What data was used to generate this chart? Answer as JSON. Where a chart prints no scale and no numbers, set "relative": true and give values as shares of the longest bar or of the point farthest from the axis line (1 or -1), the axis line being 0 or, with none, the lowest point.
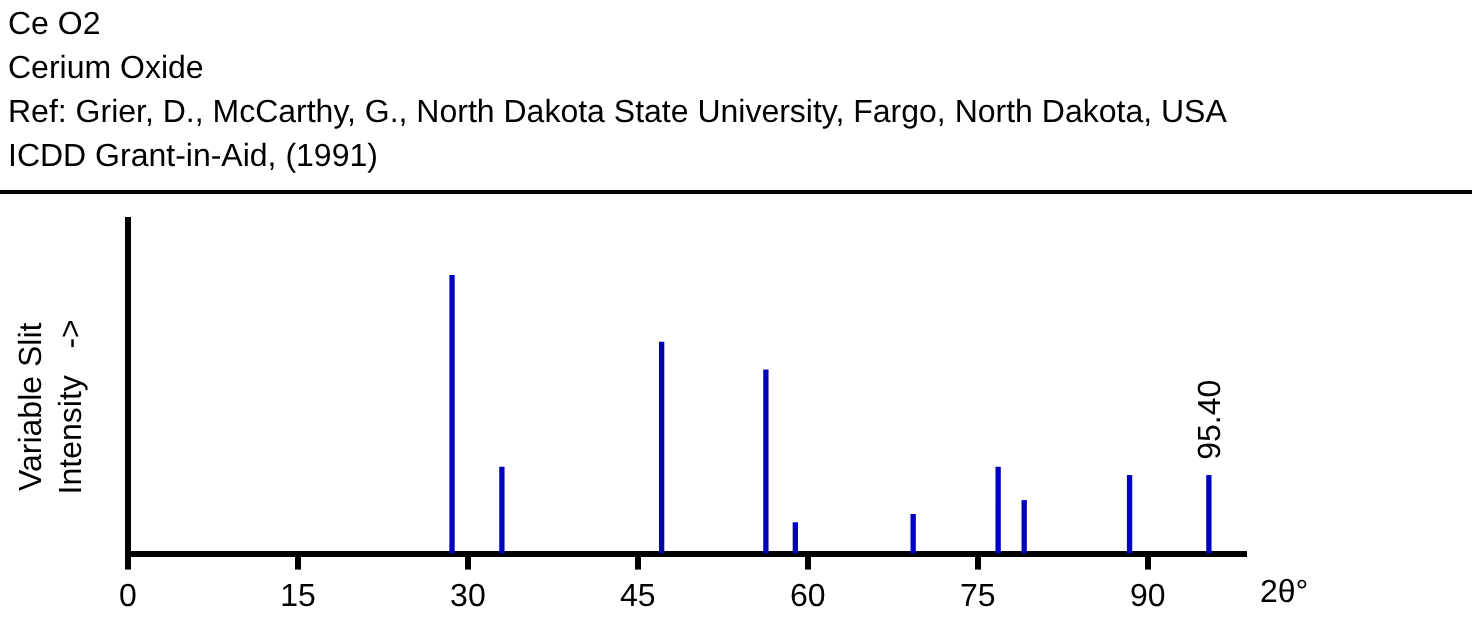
{
  "chart_data": {
    "type": "bar",
    "title": "Ce O2",
    "subtitle": "Cerium Oxide",
    "annotations": [
      "Ref: Grier, D., McCarthy, G., North Dakota State University, Fargo, North Dakota, USA",
      "ICDD Grant-in-Aid, (1991)",
      {
        "text": "95.40",
        "x": 95.4,
        "y": 0.28
      }
    ],
    "ylabel": "Variable Slit\nIntensity   ->",
    "xlabel": "2θ°",
    "x": [
      28.6,
      33.0,
      47.1,
      56.3,
      58.9,
      69.3,
      76.8,
      79.1,
      88.4,
      95.4
    ],
    "values": [
      1,
      0.31,
      0.76,
      0.66,
      0.11,
      0.14,
      0.31,
      0.19,
      0.28,
      0.28
    ],
    "color": "#0000c0",
    "relative": true,
    "xlim": [
      0,
      98.5
    ],
    "xticks": [
      0,
      15,
      30,
      45,
      60,
      75,
      90
    ],
    "legend": false
  }
}
